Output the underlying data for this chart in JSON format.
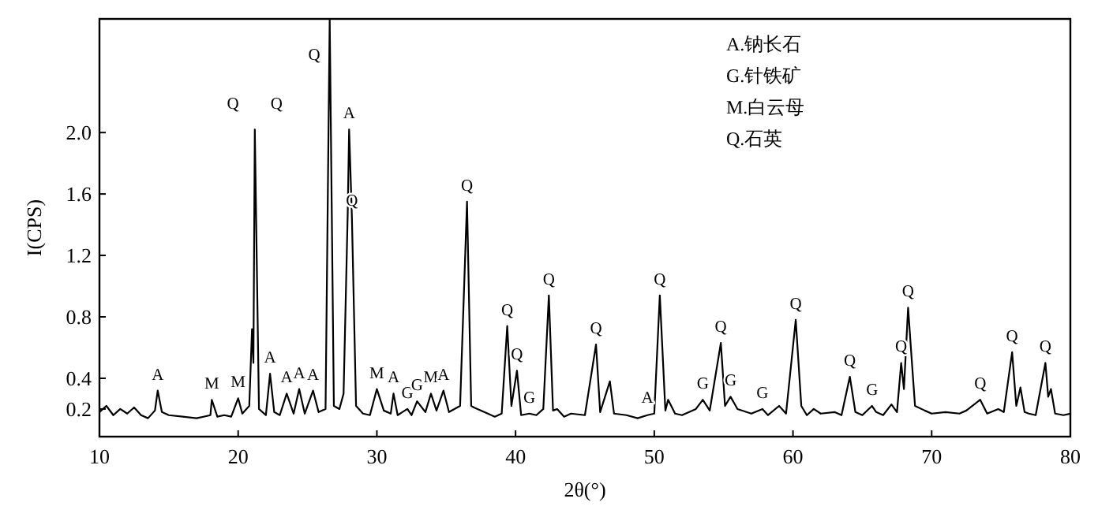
{
  "chart_data": {
    "type": "line",
    "xlabel": "2θ(°)",
    "ylabel": "I(CPS)",
    "xlim": [
      10,
      80
    ],
    "ylim": [
      0.02,
      2.74
    ],
    "xticks": [
      10,
      20,
      30,
      40,
      50,
      60,
      70,
      80
    ],
    "yticks": [
      {
        "value": 0.2,
        "label": "0.2"
      },
      {
        "value": 0.4,
        "label": "0.4"
      },
      {
        "value": 0.8,
        "label": "0.8"
      },
      {
        "value": 1.2,
        "label": "1.2"
      },
      {
        "value": 1.6,
        "label": "1.6"
      },
      {
        "value": 2.0,
        "label": "2.0"
      }
    ],
    "series": [
      {
        "color": "#000000",
        "x": [
          10,
          10.5,
          11,
          11.5,
          12,
          12.5,
          13,
          13.5,
          14,
          14.2,
          14.5,
          15,
          16,
          17,
          18,
          18.1,
          18.5,
          19,
          19.5,
          20,
          20.3,
          20.8,
          21.0,
          21.1,
          21.2,
          21.5,
          22,
          22.3,
          22.6,
          23,
          23.5,
          24,
          24.4,
          24.8,
          25.4,
          25.8,
          26.3,
          26.6,
          26.9,
          27.3,
          27.6,
          27.9,
          28.0,
          28.2,
          28.5,
          29,
          29.5,
          30.0,
          30.5,
          31,
          31.2,
          31.5,
          32.2,
          32.5,
          32.9,
          33.5,
          33.9,
          34.3,
          34.8,
          35.2,
          36,
          36.5,
          36.8,
          37,
          38,
          38.5,
          39,
          39.4,
          39.7,
          40.1,
          40.4,
          41,
          41.5,
          42,
          42.4,
          42.7,
          43,
          43.5,
          44,
          45,
          45.8,
          46.1,
          46.8,
          47.1,
          48,
          48.8,
          49.5,
          50.0,
          50.4,
          50.8,
          51,
          51.5,
          52,
          53,
          53.5,
          54,
          54.8,
          55.1,
          55.5,
          56,
          57,
          57.8,
          58.2,
          59,
          59.5,
          60.2,
          60.6,
          61,
          61.5,
          62,
          63,
          63.5,
          64.1,
          64.5,
          65,
          65.7,
          66,
          66.5,
          67.1,
          67.5,
          67.8,
          68.0,
          68.3,
          68.5,
          68.8,
          69.5,
          70,
          71,
          72,
          72.5,
          73.5,
          74,
          74.8,
          75.2,
          75.8,
          76.1,
          76.4,
          76.7,
          77,
          77.5,
          78.2,
          78.4,
          78.6,
          78.9,
          79.5,
          80
        ],
        "values": [
          0.18,
          0.22,
          0.16,
          0.2,
          0.17,
          0.21,
          0.16,
          0.14,
          0.19,
          0.32,
          0.18,
          0.16,
          0.15,
          0.14,
          0.16,
          0.26,
          0.15,
          0.16,
          0.15,
          0.27,
          0.17,
          0.22,
          0.72,
          0.5,
          2.02,
          0.2,
          0.16,
          0.43,
          0.18,
          0.16,
          0.3,
          0.17,
          0.33,
          0.17,
          0.32,
          0.18,
          0.2,
          2.74,
          0.22,
          0.2,
          0.3,
          1.48,
          2.02,
          1.45,
          0.22,
          0.17,
          0.16,
          0.33,
          0.19,
          0.17,
          0.3,
          0.16,
          0.2,
          0.16,
          0.25,
          0.18,
          0.3,
          0.19,
          0.32,
          0.18,
          0.22,
          1.55,
          0.22,
          0.21,
          0.17,
          0.15,
          0.17,
          0.74,
          0.22,
          0.45,
          0.16,
          0.17,
          0.16,
          0.2,
          0.94,
          0.19,
          0.2,
          0.15,
          0.17,
          0.16,
          0.62,
          0.18,
          0.38,
          0.17,
          0.16,
          0.14,
          0.16,
          0.17,
          0.94,
          0.19,
          0.26,
          0.17,
          0.16,
          0.2,
          0.26,
          0.19,
          0.63,
          0.22,
          0.28,
          0.2,
          0.17,
          0.2,
          0.16,
          0.22,
          0.17,
          0.78,
          0.22,
          0.16,
          0.2,
          0.17,
          0.18,
          0.16,
          0.41,
          0.18,
          0.16,
          0.22,
          0.18,
          0.16,
          0.23,
          0.18,
          0.5,
          0.33,
          0.86,
          0.6,
          0.22,
          0.19,
          0.17,
          0.18,
          0.17,
          0.19,
          0.26,
          0.17,
          0.2,
          0.18,
          0.57,
          0.22,
          0.34,
          0.18,
          0.17,
          0.16,
          0.5,
          0.28,
          0.33,
          0.17,
          0.16,
          0.17
        ]
      }
    ],
    "annotations": [
      {
        "text": "A",
        "x": 14.2,
        "y": 0.32
      },
      {
        "text": "M",
        "x": 18.1,
        "y": 0.26
      },
      {
        "text": "M",
        "x": 20,
        "y": 0.27
      },
      {
        "text": "Q",
        "x": 21.2,
        "y": 2.02
      },
      {
        "text": "Q",
        "x": 21.2,
        "y": 2.02
      },
      {
        "text": "A",
        "x": 22.3,
        "y": 0.43
      },
      {
        "text": "A",
        "x": 23.5,
        "y": 0.3
      },
      {
        "text": "A",
        "x": 24.4,
        "y": 0.33
      },
      {
        "text": "A",
        "x": 25.4,
        "y": 0.32
      },
      {
        "text": "Q",
        "x": 26.6,
        "y": 2.74
      },
      {
        "text": "A",
        "x": 28.0,
        "y": 2.02
      },
      {
        "text": "Q",
        "x": 28.2,
        "y": 1.45
      },
      {
        "text": "Q",
        "x": 36.5,
        "y": 1.55
      },
      {
        "text": "M",
        "x": 30.0,
        "y": 0.33
      },
      {
        "text": "A",
        "x": 31.2,
        "y": 0.3
      },
      {
        "text": "G",
        "x": 32.2,
        "y": 0.2
      },
      {
        "text": "G",
        "x": 32.9,
        "y": 0.25
      },
      {
        "text": "M",
        "x": 33.9,
        "y": 0.3
      },
      {
        "text": "A",
        "x": 34.8,
        "y": 0.32
      },
      {
        "text": "Q",
        "x": 39.4,
        "y": 0.74
      },
      {
        "text": "Q",
        "x": 40.1,
        "y": 0.45
      },
      {
        "text": "G",
        "x": 41,
        "y": 0.17
      },
      {
        "text": "Q",
        "x": 42.4,
        "y": 0.94
      },
      {
        "text": "Q",
        "x": 45.8,
        "y": 0.62
      },
      {
        "text": "A",
        "x": 49.5,
        "y": 0.17
      },
      {
        "text": "Q",
        "x": 50.4,
        "y": 0.94
      },
      {
        "text": "G",
        "x": 53.5,
        "y": 0.26
      },
      {
        "text": "Q",
        "x": 54.8,
        "y": 0.63
      },
      {
        "text": "G",
        "x": 55.5,
        "y": 0.28
      },
      {
        "text": "G",
        "x": 57.8,
        "y": 0.2
      },
      {
        "text": "Q",
        "x": 60.2,
        "y": 0.78
      },
      {
        "text": "Q",
        "x": 64.1,
        "y": 0.41
      },
      {
        "text": "G",
        "x": 65.7,
        "y": 0.22
      },
      {
        "text": "Q",
        "x": 67.8,
        "y": 0.5
      },
      {
        "text": "Q",
        "x": 68.3,
        "y": 0.86
      },
      {
        "text": "Q",
        "x": 73.5,
        "y": 0.26
      },
      {
        "text": "Q",
        "x": 75.8,
        "y": 0.57
      },
      {
        "text": "Q",
        "x": 78.2,
        "y": 0.5
      },
      "A.钠长石",
      "G.针铁矿",
      "M.白云母",
      "Q.石英"
    ]
  }
}
